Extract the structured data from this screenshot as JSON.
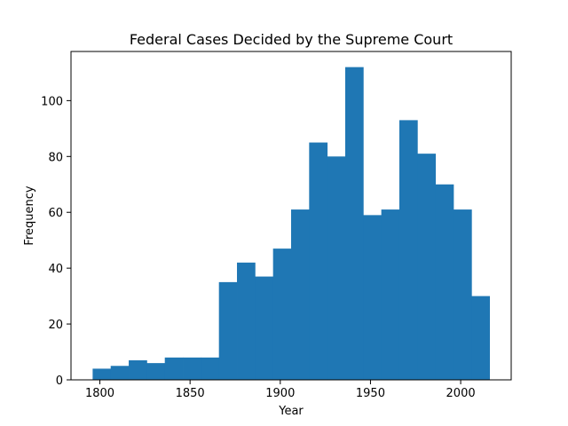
{
  "chart_data": {
    "type": "bar",
    "title": "Federal Cases Decided by the Supreme Court",
    "xlabel": "Year",
    "ylabel": "Frequency",
    "xlim": [
      1784,
      2028
    ],
    "ylim": [
      0,
      117.6
    ],
    "xticks": [
      1800,
      1850,
      1900,
      1950,
      2000
    ],
    "yticks": [
      0,
      20,
      40,
      60,
      80,
      100
    ],
    "bin_edges": [
      1796,
      1806,
      1816,
      1826,
      1836,
      1846,
      1856,
      1866,
      1876,
      1886,
      1896,
      1906,
      1916,
      1926,
      1936,
      1946,
      1956,
      1966,
      1976,
      1986,
      1996,
      2006,
      2016
    ],
    "values": [
      4,
      5,
      7,
      6,
      8,
      8,
      8,
      35,
      42,
      37,
      47,
      61,
      85,
      80,
      112,
      59,
      61,
      93,
      81,
      70,
      61,
      30
    ],
    "bar_color": "#1f77b4",
    "grid": false
  }
}
